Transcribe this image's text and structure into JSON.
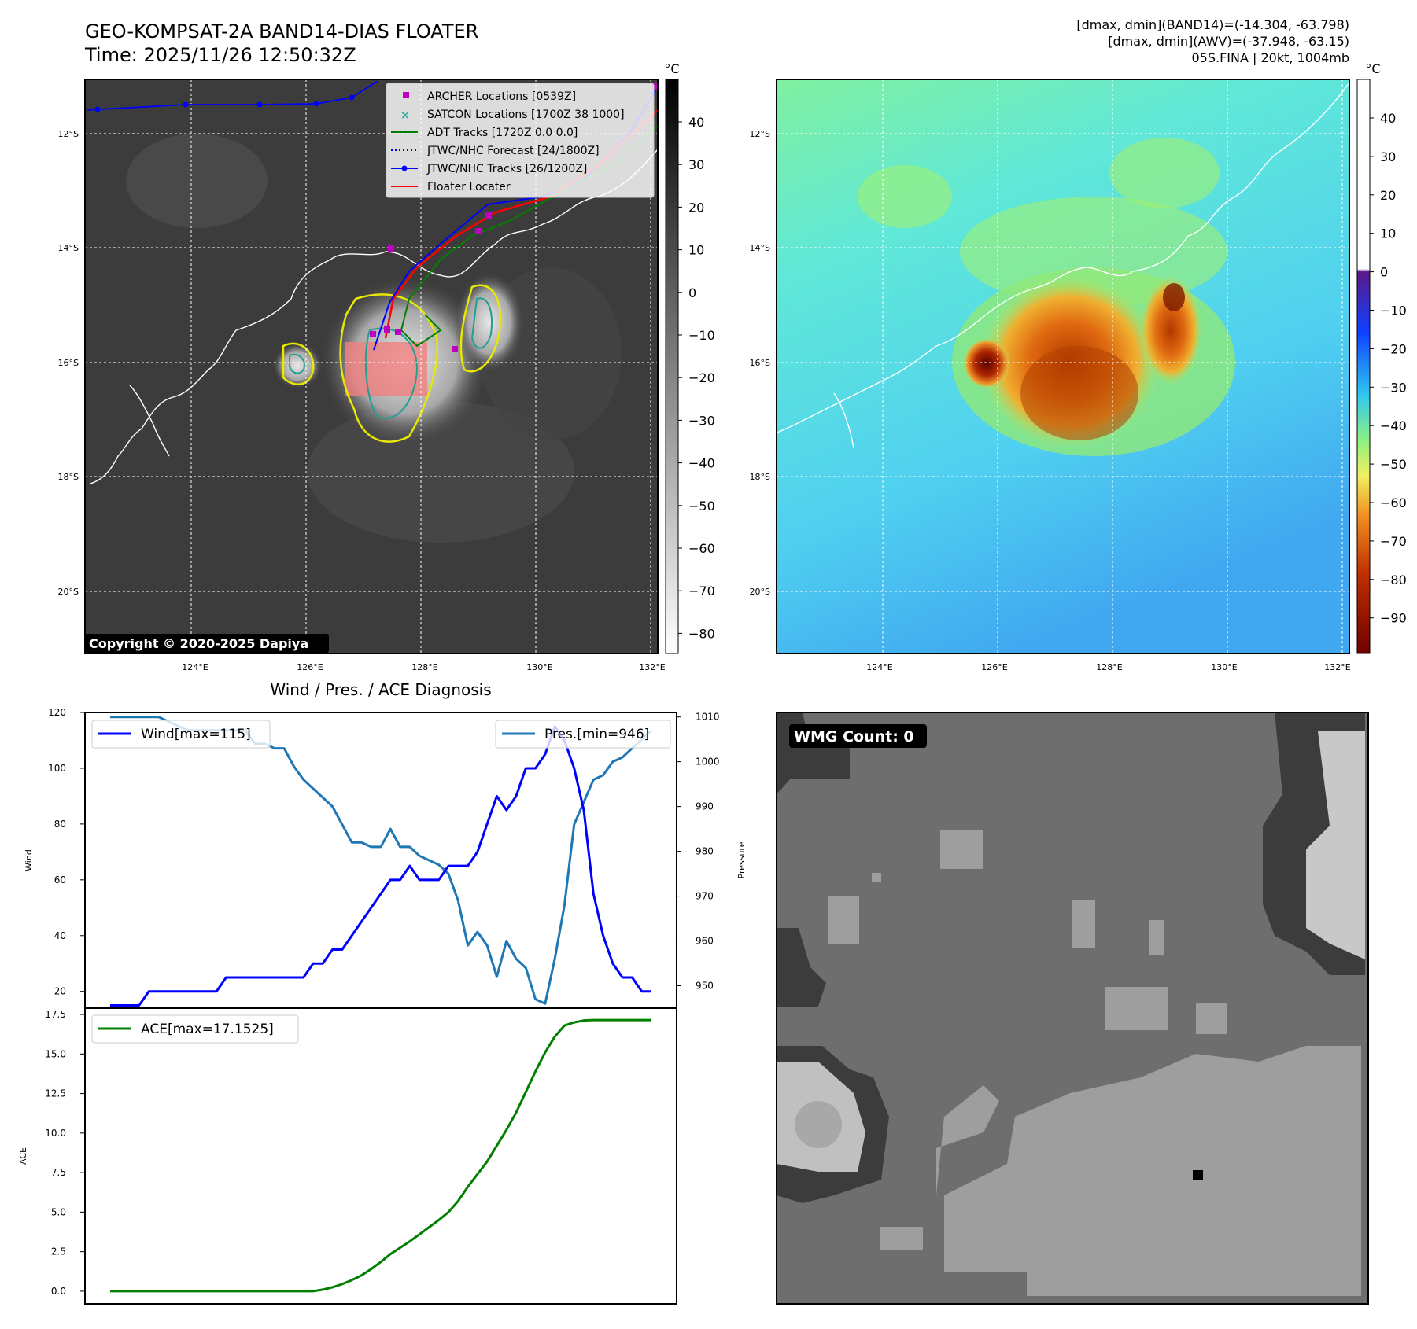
{
  "left_title": {
    "line1": "GEO-KOMPSAT-2A BAND14-DIAS FLOATER",
    "line2": "Time: 2025/11/26 12:50:32Z"
  },
  "right_info": {
    "line1": "[dmax, dmin](BAND14)=(-14.304, -63.798)",
    "line2": "[dmax, dmin](AWV)=(-37.948, -63.15)",
    "line3": "05S.FINA | 20kt, 1004mb"
  },
  "maps": {
    "lon_ticks": [
      "124°E",
      "126°E",
      "128°E",
      "130°E",
      "132°E"
    ],
    "lat_ticks": [
      "12°S",
      "14°S",
      "16°S",
      "18°S",
      "20°S"
    ],
    "colorbar_unit": "°C",
    "ir_colorbar_ticks": [
      "40",
      "30",
      "20",
      "10",
      "0",
      "−10",
      "−20",
      "−30",
      "−40",
      "−50",
      "−60",
      "−70",
      "−80"
    ],
    "awv_colorbar_ticks": [
      "40",
      "30",
      "20",
      "10",
      "0",
      "−10",
      "−20",
      "−30",
      "−40",
      "−50",
      "−60",
      "−70",
      "−80",
      "−90"
    ],
    "copyright": "Copyright © 2020-2025 Dapiya",
    "legend": [
      {
        "label": "ARCHER Locations [0539Z]",
        "color": "#c000c0",
        "marker": "square"
      },
      {
        "label": "SATCON Locations [1700Z 38 1000]",
        "color": "#20b2aa",
        "marker": "x"
      },
      {
        "label": "ADT Tracks [1720Z 0.0 0.0]",
        "color": "#008000",
        "marker": "line"
      },
      {
        "label": "JTWC/NHC Forecast [24/1800Z]",
        "color": "#0000ff",
        "marker": "dotted"
      },
      {
        "label": "JTWC/NHC Tracks [26/1200Z]",
        "color": "#0000ff",
        "marker": "line-dot"
      },
      {
        "label": "Floater Locater",
        "color": "#ff0000",
        "marker": "line"
      }
    ]
  },
  "wmg": {
    "label": "WMG Count: 0"
  },
  "chart_data": [
    {
      "type": "line",
      "title": "Wind / Pres. / ACE Diagnosis",
      "ylabel": "Wind",
      "y2label": "Pressure",
      "ylim": [
        14,
        120
      ],
      "y2lim": [
        945,
        1011
      ],
      "yticks": [
        20,
        40,
        60,
        80,
        100,
        120
      ],
      "y2ticks": [
        950,
        960,
        970,
        980,
        990,
        1000,
        1010
      ],
      "series": [
        {
          "name": "Wind[max=115]",
          "color": "#0000ff",
          "axis": "left",
          "values": [
            15,
            15,
            15,
            15,
            20,
            20,
            20,
            20,
            20,
            20,
            20,
            20,
            25,
            25,
            25,
            25,
            25,
            25,
            25,
            25,
            25,
            30,
            30,
            35,
            35,
            40,
            45,
            50,
            55,
            60,
            60,
            65,
            60,
            60,
            60,
            65,
            65,
            65,
            70,
            80,
            90,
            85,
            90,
            100,
            100,
            105,
            115,
            110,
            100,
            85,
            55,
            40,
            30,
            25,
            25,
            20,
            20
          ]
        },
        {
          "name": "Pres.[min=946]",
          "color": "#1f77b4",
          "axis": "right",
          "values": [
            1010,
            1010,
            1010,
            1010,
            1010,
            1010,
            1009,
            1008,
            1007,
            1007,
            1007,
            1007,
            1007,
            1007,
            1007,
            1004,
            1004,
            1003,
            1003,
            999,
            996,
            994,
            992,
            990,
            986,
            982,
            982,
            981,
            981,
            985,
            981,
            981,
            979,
            978,
            977,
            975,
            969,
            959,
            962,
            959,
            952,
            960,
            956,
            954,
            947,
            946,
            956,
            968,
            986,
            991,
            996,
            997,
            1000,
            1001,
            1003,
            1005,
            1007
          ]
        }
      ]
    },
    {
      "type": "line",
      "ylabel": "ACE",
      "ylim": [
        -0.8,
        17.9
      ],
      "yticks": [
        0.0,
        2.5,
        5.0,
        7.5,
        10.0,
        12.5,
        15.0,
        17.5
      ],
      "series": [
        {
          "name": "ACE[max=17.1525]",
          "color": "#008000",
          "values": [
            0,
            0,
            0,
            0,
            0,
            0,
            0,
            0,
            0,
            0,
            0,
            0,
            0,
            0,
            0,
            0,
            0,
            0,
            0,
            0,
            0,
            0,
            0.1,
            0.25,
            0.45,
            0.7,
            1.0,
            1.4,
            1.85,
            2.35,
            2.75,
            3.15,
            3.6,
            4.05,
            4.5,
            5.0,
            5.7,
            6.6,
            7.4,
            8.2,
            9.2,
            10.2,
            11.3,
            12.6,
            13.9,
            15.1,
            16.1,
            16.8,
            17.0,
            17.12,
            17.15,
            17.15,
            17.15,
            17.15,
            17.15,
            17.15,
            17.15
          ]
        }
      ]
    }
  ]
}
